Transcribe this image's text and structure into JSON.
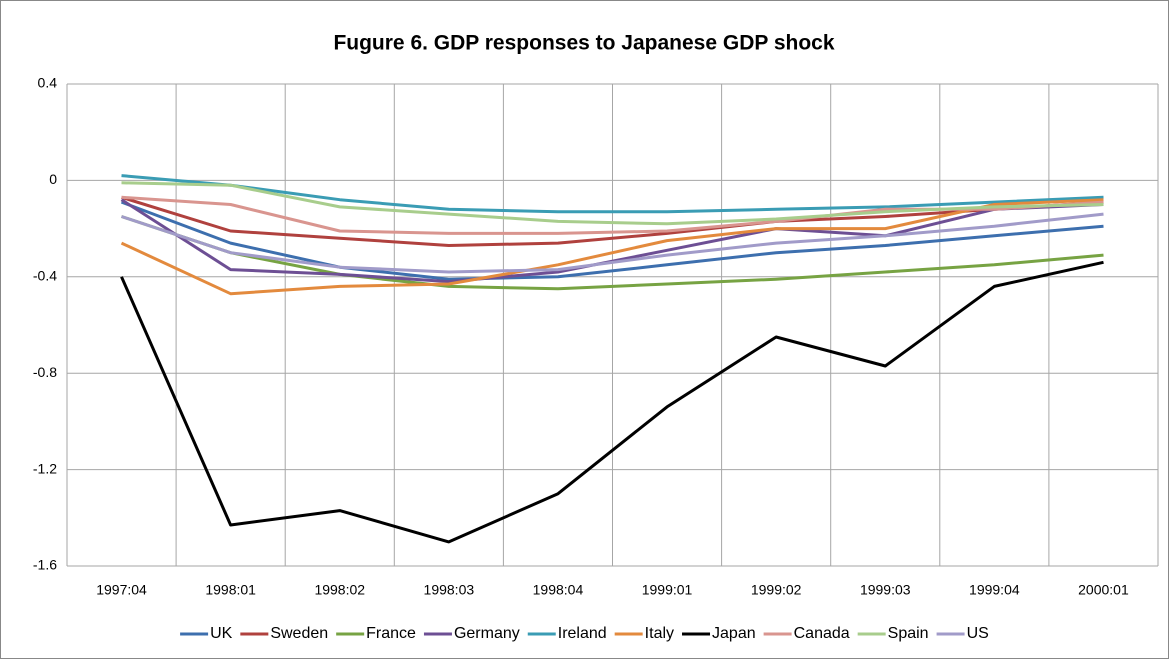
{
  "chart_data": {
    "type": "line",
    "title": "Fugure 6. GDP responses to Japanese GDP shock",
    "categories": [
      "1997:04",
      "1998:01",
      "1998:02",
      "1998:03",
      "1998:04",
      "1999:01",
      "1999:02",
      "1999:03",
      "1999:04",
      "2000:01"
    ],
    "ylim": [
      -1.6,
      0.4
    ],
    "yticks": [
      0.4,
      0,
      -0.4,
      -0.8,
      -1.2,
      -1.6
    ],
    "grid": true,
    "legend": "bottom",
    "series": [
      {
        "name": "UK",
        "color": "#3d6fae",
        "values": [
          -0.09,
          -0.26,
          -0.36,
          -0.41,
          -0.4,
          -0.35,
          -0.3,
          -0.27,
          -0.23,
          -0.19
        ]
      },
      {
        "name": "Sweden",
        "color": "#b0413e",
        "values": [
          -0.07,
          -0.21,
          -0.24,
          -0.27,
          -0.26,
          -0.22,
          -0.17,
          -0.15,
          -0.12,
          -0.09
        ]
      },
      {
        "name": "France",
        "color": "#77a343",
        "values": [
          -0.15,
          -0.3,
          -0.39,
          -0.44,
          -0.45,
          -0.43,
          -0.41,
          -0.38,
          -0.35,
          -0.31
        ]
      },
      {
        "name": "Germany",
        "color": "#6d4f94",
        "values": [
          -0.08,
          -0.37,
          -0.39,
          -0.42,
          -0.38,
          -0.29,
          -0.2,
          -0.23,
          -0.12,
          -0.1
        ]
      },
      {
        "name": "Ireland",
        "color": "#3a9cb4",
        "values": [
          0.02,
          -0.02,
          -0.08,
          -0.12,
          -0.13,
          -0.13,
          -0.12,
          -0.11,
          -0.09,
          -0.07
        ]
      },
      {
        "name": "Italy",
        "color": "#e38a3d",
        "values": [
          -0.26,
          -0.47,
          -0.44,
          -0.43,
          -0.35,
          -0.25,
          -0.2,
          -0.2,
          -0.1,
          -0.08
        ]
      },
      {
        "name": "Japan",
        "color": "#000000",
        "values": [
          -0.4,
          -1.43,
          -1.37,
          -1.5,
          -1.3,
          -0.94,
          -0.65,
          -0.77,
          -0.44,
          -0.34
        ]
      },
      {
        "name": "Canada",
        "color": "#d9958f",
        "values": [
          -0.07,
          -0.1,
          -0.21,
          -0.22,
          -0.22,
          -0.21,
          -0.17,
          -0.12,
          -0.12,
          -0.09
        ]
      },
      {
        "name": "Spain",
        "color": "#a8cd8c",
        "values": [
          -0.01,
          -0.02,
          -0.11,
          -0.14,
          -0.17,
          -0.18,
          -0.16,
          -0.13,
          -0.11,
          -0.1
        ]
      },
      {
        "name": "US",
        "color": "#a19bc9",
        "values": [
          -0.15,
          -0.3,
          -0.36,
          -0.38,
          -0.37,
          -0.31,
          -0.26,
          -0.23,
          -0.19,
          -0.14
        ]
      }
    ]
  }
}
